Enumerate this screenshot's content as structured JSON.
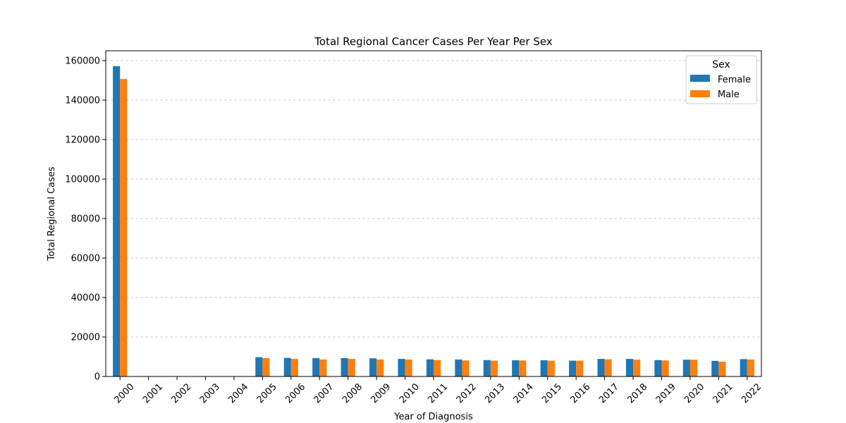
{
  "chart_data": {
    "type": "bar",
    "title": "Total Regional Cancer Cases Per Year Per Sex",
    "xlabel": "Year of Diagnosis",
    "ylabel": "Total Regional Cases",
    "categories": [
      "2000",
      "2001",
      "2002",
      "2003",
      "2004",
      "2005",
      "2006",
      "2007",
      "2008",
      "2009",
      "2010",
      "2011",
      "2012",
      "2013",
      "2014",
      "2015",
      "2016",
      "2017",
      "2018",
      "2019",
      "2020",
      "2021",
      "2022"
    ],
    "series": [
      {
        "name": "Female",
        "color": "#1f77b4",
        "values": [
          157200,
          0,
          0,
          0,
          0,
          9800,
          9400,
          9300,
          9300,
          9200,
          8900,
          8700,
          8600,
          8300,
          8200,
          8200,
          8000,
          8900,
          8900,
          8300,
          8500,
          7900,
          8800
        ]
      },
      {
        "name": "Male",
        "color": "#ff7f0e",
        "values": [
          150700,
          0,
          0,
          0,
          0,
          9300,
          8900,
          8600,
          8900,
          8600,
          8600,
          8300,
          8100,
          8000,
          8100,
          8000,
          8000,
          8700,
          8500,
          8100,
          8500,
          7500,
          8600
        ]
      }
    ],
    "yticks": [
      "0",
      "20000",
      "40000",
      "60000",
      "80000",
      "100000",
      "120000",
      "140000",
      "160000"
    ],
    "ylim": [
      0,
      165000
    ],
    "grid": "y-dashed",
    "legend": {
      "title": "Sex",
      "placement": "top-right"
    }
  }
}
